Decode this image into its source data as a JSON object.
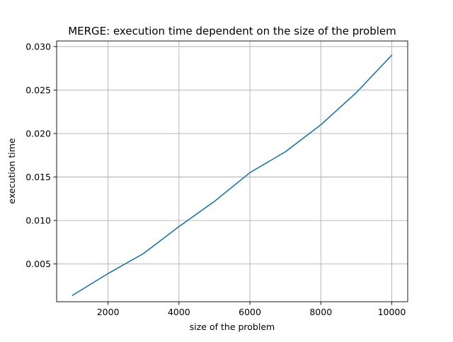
{
  "chart_data": {
    "type": "line",
    "title": "MERGE: execution time dependent on the size of the problem",
    "xlabel": "size of the problem",
    "ylabel": "execution time",
    "x": [
      1000,
      2000,
      3000,
      4000,
      5000,
      6000,
      7000,
      8000,
      9000,
      10000
    ],
    "series": [
      {
        "values": [
          0.0014,
          0.0039,
          0.0062,
          0.0093,
          0.0122,
          0.0155,
          0.0179,
          0.021,
          0.0247,
          0.029
        ],
        "color": "#1f77b4"
      }
    ],
    "xlim": [
      550,
      10450
    ],
    "ylim": [
      0.00066,
      0.03064
    ],
    "xticks": [
      2000,
      4000,
      6000,
      8000,
      10000
    ],
    "xtick_labels": [
      "2000",
      "4000",
      "6000",
      "8000",
      "10000"
    ],
    "yticks": [
      0.005,
      0.01,
      0.015,
      0.02,
      0.025,
      0.03
    ],
    "ytick_labels": [
      "0.005",
      "0.010",
      "0.015",
      "0.020",
      "0.025",
      "0.030"
    ],
    "grid": true,
    "legend": null
  }
}
